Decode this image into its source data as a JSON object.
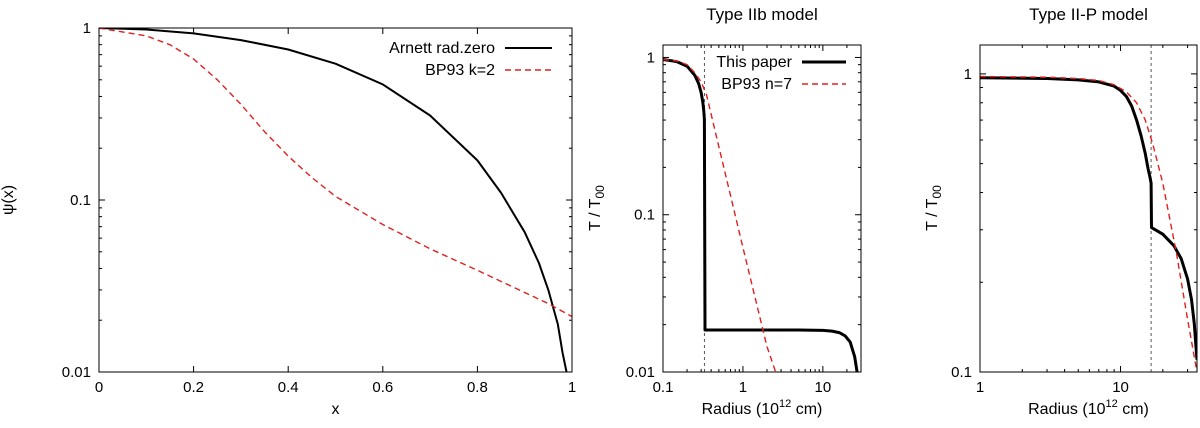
{
  "chart_data": [
    {
      "type": "line",
      "title": "",
      "xlabel": "x",
      "ylabel": "ψ(x)",
      "xscale": "linear",
      "yscale": "log",
      "xlim": [
        0,
        1
      ],
      "ylim": [
        0.01,
        1
      ],
      "xticks": [
        "0",
        "0.2",
        "0.4",
        "0.6",
        "0.8",
        "1"
      ],
      "yticks": [
        "0.01",
        "0.1",
        "1"
      ],
      "legend_position": "top-right",
      "series": [
        {
          "name": "Arnett rad.zero",
          "color": "#000000",
          "dash": "solid",
          "x": [
            0,
            0.1,
            0.2,
            0.3,
            0.4,
            0.5,
            0.6,
            0.7,
            0.8,
            0.85,
            0.9,
            0.93,
            0.95,
            0.97,
            0.98,
            0.99
          ],
          "y": [
            1,
            0.98,
            0.93,
            0.85,
            0.75,
            0.62,
            0.47,
            0.31,
            0.17,
            0.11,
            0.065,
            0.043,
            0.03,
            0.019,
            0.013,
            0.0095
          ]
        },
        {
          "name": "BP93 k=2",
          "color": "#e02020",
          "dash": "dashed",
          "x": [
            0,
            0.1,
            0.15,
            0.2,
            0.25,
            0.3,
            0.35,
            0.4,
            0.45,
            0.5,
            0.6,
            0.7,
            0.8,
            0.9,
            0.95,
            1.0
          ],
          "y": [
            1,
            0.9,
            0.8,
            0.66,
            0.5,
            0.36,
            0.25,
            0.18,
            0.135,
            0.105,
            0.072,
            0.052,
            0.039,
            0.029,
            0.025,
            0.021
          ]
        }
      ]
    },
    {
      "type": "line",
      "title": "Type IIb model",
      "xlabel": "Radius (10",
      "xlabel_sup": "12",
      "xlabel_tail": " cm)",
      "ylabel": "T / T",
      "ylabel_sub": "00",
      "xscale": "log",
      "yscale": "log",
      "xlim": [
        0.1,
        30
      ],
      "ylim": [
        0.01,
        1.2
      ],
      "xticks": [
        "0.1",
        "1",
        "10"
      ],
      "yticks": [
        "0.01",
        "0.1",
        "1"
      ],
      "vline_x": 0.33,
      "legend_position": "top-right",
      "series": [
        {
          "name": "This paper",
          "color": "#000000",
          "dash": "solid",
          "x": [
            0.1,
            0.15,
            0.2,
            0.25,
            0.28,
            0.3,
            0.315,
            0.325,
            0.33,
            0.335,
            1,
            5,
            10,
            13,
            16,
            19,
            22,
            25,
            27
          ],
          "y": [
            0.97,
            0.94,
            0.88,
            0.77,
            0.68,
            0.6,
            0.52,
            0.45,
            0.4,
            0.0185,
            0.0185,
            0.0185,
            0.0184,
            0.0182,
            0.0178,
            0.017,
            0.0155,
            0.0125,
            0.0098
          ]
        },
        {
          "name": "BP93 n=7",
          "color": "#e02020",
          "dash": "dashed",
          "x": [
            0.1,
            0.15,
            0.2,
            0.25,
            0.3,
            0.35,
            0.5,
            1,
            2,
            2.6
          ],
          "y": [
            0.97,
            0.95,
            0.9,
            0.8,
            0.7,
            0.58,
            0.27,
            0.062,
            0.0145,
            0.0098
          ]
        }
      ]
    },
    {
      "type": "line",
      "title": "Type II-P model",
      "xlabel": "Radius (10",
      "xlabel_sup": "12",
      "xlabel_tail": " cm)",
      "ylabel": "T / T",
      "ylabel_sub": "00",
      "xscale": "log",
      "yscale": "log",
      "xlim": [
        1,
        35
      ],
      "ylim": [
        0.1,
        1.25
      ],
      "xticks": [
        "1",
        "10"
      ],
      "yticks": [
        "0.1",
        "1"
      ],
      "vline_x": 16.5,
      "legend_position": "none",
      "series": [
        {
          "name": "This paper",
          "color": "#000000",
          "dash": "solid",
          "x": [
            1,
            3,
            5,
            7,
            9,
            10,
            11,
            12,
            13,
            14,
            15,
            15.7,
            16.2,
            16.5,
            16.6,
            20,
            24,
            27,
            30,
            32,
            33.5,
            34.5,
            35
          ],
          "y": [
            0.97,
            0.965,
            0.955,
            0.94,
            0.91,
            0.88,
            0.84,
            0.78,
            0.7,
            0.62,
            0.54,
            0.48,
            0.45,
            0.43,
            0.305,
            0.29,
            0.265,
            0.24,
            0.205,
            0.175,
            0.145,
            0.12,
            0.11
          ]
        },
        {
          "name": "BP93",
          "color": "#e02020",
          "dash": "dashed",
          "x": [
            1,
            3,
            5,
            7,
            9,
            11,
            13,
            15,
            17,
            20,
            25,
            30,
            35
          ],
          "y": [
            0.98,
            0.975,
            0.965,
            0.95,
            0.92,
            0.87,
            0.8,
            0.7,
            0.58,
            0.43,
            0.25,
            0.15,
            0.1
          ]
        }
      ]
    }
  ]
}
